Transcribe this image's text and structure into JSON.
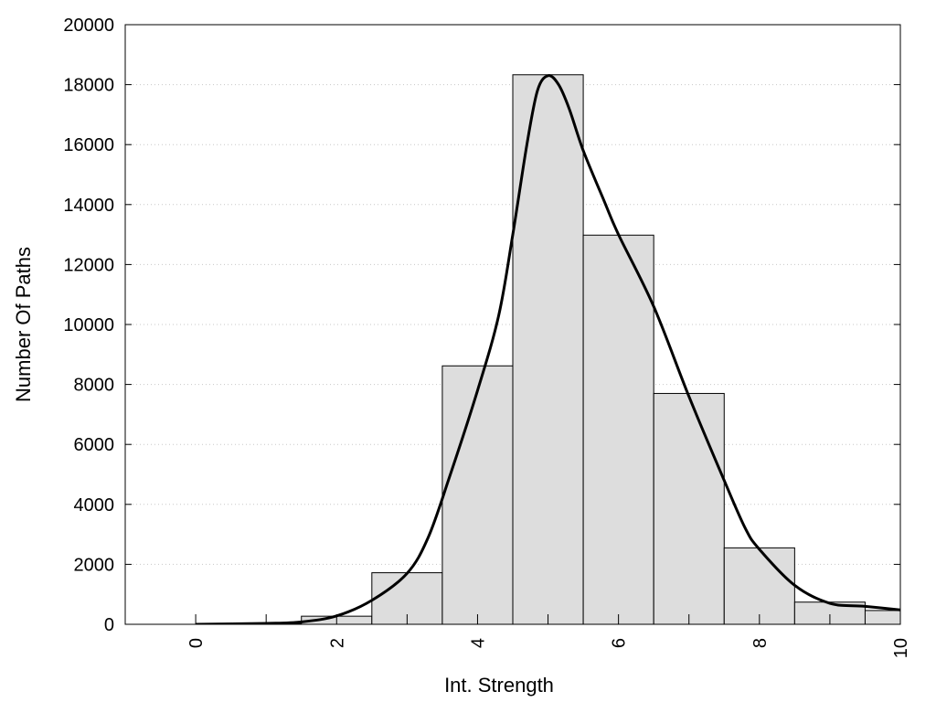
{
  "chart_data": {
    "type": "bar",
    "xlabel": "Int. Strength",
    "ylabel": "Number Of Paths",
    "xlim": [
      -1,
      10
    ],
    "ylim": [
      0,
      20000
    ],
    "x_ticks": [
      0,
      2,
      4,
      6,
      8,
      10
    ],
    "x_tick_labels": [
      "0",
      "2",
      "4",
      "6",
      "8",
      "10"
    ],
    "y_ticks": [
      0,
      2000,
      4000,
      6000,
      8000,
      10000,
      12000,
      14000,
      16000,
      18000,
      20000
    ],
    "y_tick_labels": [
      "0",
      "2000",
      "4000",
      "6000",
      "8000",
      "10000",
      "12000",
      "14000",
      "16000",
      "18000",
      "20000"
    ],
    "grid": "y-dotted",
    "bar_color": "#dddddd",
    "line_color": "#000000",
    "bars": [
      {
        "x0": -0.5,
        "x1": 0.5,
        "value": 0
      },
      {
        "x0": 0.5,
        "x1": 1.5,
        "value": 20
      },
      {
        "x0": 1.5,
        "x1": 2.5,
        "value": 270
      },
      {
        "x0": 2.5,
        "x1": 3.5,
        "value": 1720
      },
      {
        "x0": 3.5,
        "x1": 4.5,
        "value": 8620
      },
      {
        "x0": 4.5,
        "x1": 5.5,
        "value": 18330
      },
      {
        "x0": 5.5,
        "x1": 6.5,
        "value": 12980
      },
      {
        "x0": 6.5,
        "x1": 7.5,
        "value": 7700
      },
      {
        "x0": 7.5,
        "x1": 8.5,
        "value": 2550
      },
      {
        "x0": 8.5,
        "x1": 9.5,
        "value": 740
      },
      {
        "x0": 9.5,
        "x1": 10.5,
        "value": 460
      }
    ],
    "curve": {
      "x": [
        0,
        1,
        1.5,
        2,
        2.5,
        3,
        3.3,
        3.6,
        4,
        4.3,
        4.5,
        4.7,
        4.85,
        5,
        5.15,
        5.3,
        5.5,
        5.8,
        6,
        6.5,
        7,
        7.5,
        7.8,
        8,
        8.5,
        9,
        9.5,
        10
      ],
      "y": [
        0,
        30,
        80,
        280,
        800,
        1700,
        2900,
        4900,
        7800,
        10300,
        13000,
        16000,
        17800,
        18300,
        18000,
        17200,
        15800,
        14100,
        13000,
        10600,
        7600,
        4800,
        3200,
        2500,
        1300,
        700,
        600,
        480
      ]
    }
  }
}
